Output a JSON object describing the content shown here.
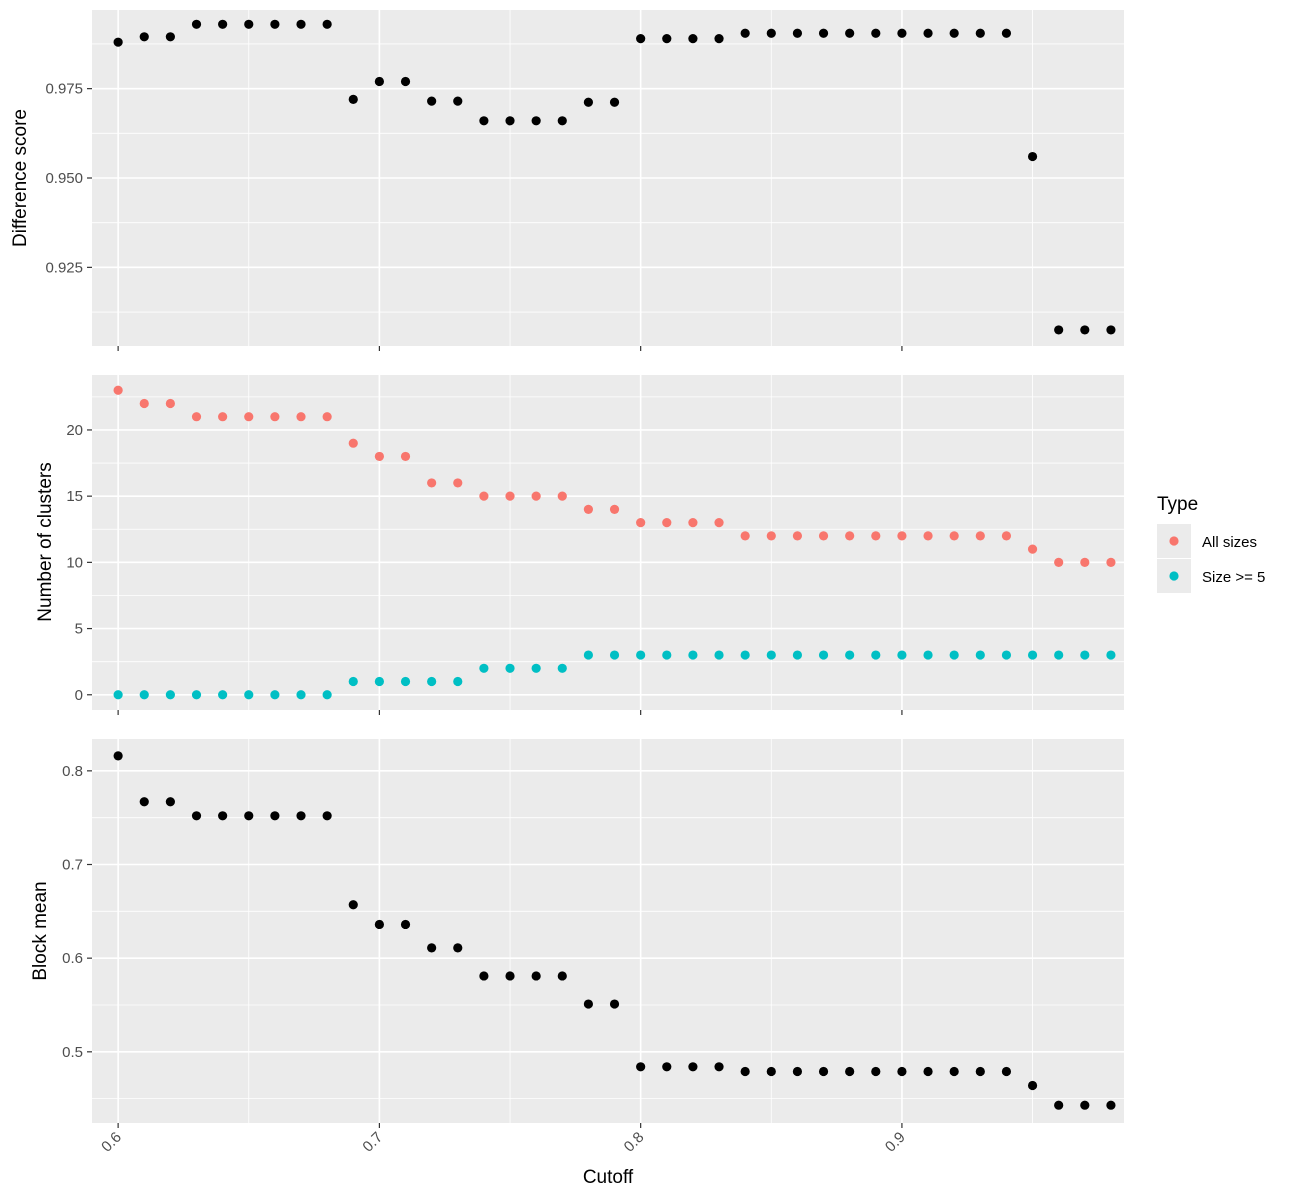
{
  "chart_data": [
    {
      "type": "scatter",
      "panel": "top",
      "ylabel": "Difference score",
      "xlim": [
        0.59,
        0.985
      ],
      "ylim": [
        0.903,
        0.997
      ],
      "x_ticks": [
        0.6,
        0.7,
        0.8,
        0.9
      ],
      "y_ticks": [
        0.925,
        0.95,
        0.975
      ],
      "y_tick_labels": [
        "0.925",
        "0.950",
        "0.975"
      ],
      "grid": true,
      "series": [
        {
          "color": "#000000",
          "points": [
            [
              0.6,
              0.988
            ],
            [
              0.61,
              0.9895
            ],
            [
              0.62,
              0.9895
            ],
            [
              0.63,
              0.993
            ],
            [
              0.64,
              0.993
            ],
            [
              0.65,
              0.993
            ],
            [
              0.66,
              0.993
            ],
            [
              0.67,
              0.993
            ],
            [
              0.68,
              0.993
            ],
            [
              0.69,
              0.972
            ],
            [
              0.7,
              0.977
            ],
            [
              0.71,
              0.977
            ],
            [
              0.72,
              0.9715
            ],
            [
              0.73,
              0.9715
            ],
            [
              0.74,
              0.966
            ],
            [
              0.75,
              0.966
            ],
            [
              0.76,
              0.966
            ],
            [
              0.77,
              0.966
            ],
            [
              0.78,
              0.9712
            ],
            [
              0.79,
              0.9712
            ],
            [
              0.8,
              0.989
            ],
            [
              0.81,
              0.989
            ],
            [
              0.82,
              0.989
            ],
            [
              0.83,
              0.989
            ],
            [
              0.84,
              0.9905
            ],
            [
              0.85,
              0.9905
            ],
            [
              0.86,
              0.9905
            ],
            [
              0.87,
              0.9905
            ],
            [
              0.88,
              0.9905
            ],
            [
              0.89,
              0.9905
            ],
            [
              0.9,
              0.9905
            ],
            [
              0.91,
              0.9905
            ],
            [
              0.92,
              0.9905
            ],
            [
              0.93,
              0.9905
            ],
            [
              0.94,
              0.9905
            ],
            [
              0.95,
              0.956
            ],
            [
              0.96,
              0.9075
            ],
            [
              0.97,
              0.9075
            ],
            [
              0.98,
              0.9075
            ]
          ]
        }
      ]
    },
    {
      "type": "scatter",
      "panel": "middle",
      "ylabel": "Number of clusters",
      "xlim": [
        0.59,
        0.985
      ],
      "ylim": [
        -1.15,
        24.15
      ],
      "x_ticks": [
        0.6,
        0.7,
        0.8,
        0.9
      ],
      "y_ticks": [
        0,
        5,
        10,
        15,
        20
      ],
      "y_tick_labels": [
        "0",
        "5",
        "10",
        "15",
        "20"
      ],
      "grid": true,
      "legend": {
        "title": "Type",
        "position": "right",
        "entries": [
          "All sizes",
          "Size >= 5"
        ]
      },
      "series": [
        {
          "name": "All sizes",
          "color": "#F8766D",
          "points": [
            [
              0.6,
              23
            ],
            [
              0.61,
              22
            ],
            [
              0.62,
              22
            ],
            [
              0.63,
              21
            ],
            [
              0.64,
              21
            ],
            [
              0.65,
              21
            ],
            [
              0.66,
              21
            ],
            [
              0.67,
              21
            ],
            [
              0.68,
              21
            ],
            [
              0.69,
              19
            ],
            [
              0.7,
              18
            ],
            [
              0.71,
              18
            ],
            [
              0.72,
              16
            ],
            [
              0.73,
              16
            ],
            [
              0.74,
              15
            ],
            [
              0.75,
              15
            ],
            [
              0.76,
              15
            ],
            [
              0.77,
              15
            ],
            [
              0.78,
              14
            ],
            [
              0.79,
              14
            ],
            [
              0.8,
              13
            ],
            [
              0.81,
              13
            ],
            [
              0.82,
              13
            ],
            [
              0.83,
              13
            ],
            [
              0.84,
              12
            ],
            [
              0.85,
              12
            ],
            [
              0.86,
              12
            ],
            [
              0.87,
              12
            ],
            [
              0.88,
              12
            ],
            [
              0.89,
              12
            ],
            [
              0.9,
              12
            ],
            [
              0.91,
              12
            ],
            [
              0.92,
              12
            ],
            [
              0.93,
              12
            ],
            [
              0.94,
              12
            ],
            [
              0.95,
              11
            ],
            [
              0.96,
              10
            ],
            [
              0.97,
              10
            ],
            [
              0.98,
              10
            ]
          ]
        },
        {
          "name": "Size >= 5",
          "color": "#00BFC4",
          "points": [
            [
              0.6,
              0
            ],
            [
              0.61,
              0
            ],
            [
              0.62,
              0
            ],
            [
              0.63,
              0
            ],
            [
              0.64,
              0
            ],
            [
              0.65,
              0
            ],
            [
              0.66,
              0
            ],
            [
              0.67,
              0
            ],
            [
              0.68,
              0
            ],
            [
              0.69,
              1
            ],
            [
              0.7,
              1
            ],
            [
              0.71,
              1
            ],
            [
              0.72,
              1
            ],
            [
              0.73,
              1
            ],
            [
              0.74,
              2
            ],
            [
              0.75,
              2
            ],
            [
              0.76,
              2
            ],
            [
              0.77,
              2
            ],
            [
              0.78,
              3
            ],
            [
              0.79,
              3
            ],
            [
              0.8,
              3
            ],
            [
              0.81,
              3
            ],
            [
              0.82,
              3
            ],
            [
              0.83,
              3
            ],
            [
              0.84,
              3
            ],
            [
              0.85,
              3
            ],
            [
              0.86,
              3
            ],
            [
              0.87,
              3
            ],
            [
              0.88,
              3
            ],
            [
              0.89,
              3
            ],
            [
              0.9,
              3
            ],
            [
              0.91,
              3
            ],
            [
              0.92,
              3
            ],
            [
              0.93,
              3
            ],
            [
              0.94,
              3
            ],
            [
              0.95,
              3
            ],
            [
              0.96,
              3
            ],
            [
              0.97,
              3
            ],
            [
              0.98,
              3
            ]
          ]
        }
      ]
    },
    {
      "type": "scatter",
      "panel": "bottom",
      "xlabel": "Cutoff",
      "ylabel": "Block mean",
      "xlim": [
        0.59,
        0.985
      ],
      "ylim": [
        0.424,
        0.834
      ],
      "x_ticks": [
        0.6,
        0.7,
        0.8,
        0.9
      ],
      "x_tick_labels": [
        "0.6",
        "0.7",
        "0.8",
        "0.9"
      ],
      "y_ticks": [
        0.5,
        0.6,
        0.7,
        0.8
      ],
      "y_tick_labels": [
        "0.5",
        "0.6",
        "0.7",
        "0.8"
      ],
      "grid": true,
      "series": [
        {
          "color": "#000000",
          "points": [
            [
              0.6,
              0.816
            ],
            [
              0.61,
              0.767
            ],
            [
              0.62,
              0.767
            ],
            [
              0.63,
              0.752
            ],
            [
              0.64,
              0.752
            ],
            [
              0.65,
              0.752
            ],
            [
              0.66,
              0.752
            ],
            [
              0.67,
              0.752
            ],
            [
              0.68,
              0.752
            ],
            [
              0.69,
              0.657
            ],
            [
              0.7,
              0.636
            ],
            [
              0.71,
              0.636
            ],
            [
              0.72,
              0.611
            ],
            [
              0.73,
              0.611
            ],
            [
              0.74,
              0.581
            ],
            [
              0.75,
              0.581
            ],
            [
              0.76,
              0.581
            ],
            [
              0.77,
              0.581
            ],
            [
              0.78,
              0.551
            ],
            [
              0.79,
              0.551
            ],
            [
              0.8,
              0.484
            ],
            [
              0.81,
              0.484
            ],
            [
              0.82,
              0.484
            ],
            [
              0.83,
              0.484
            ],
            [
              0.84,
              0.479
            ],
            [
              0.85,
              0.479
            ],
            [
              0.86,
              0.479
            ],
            [
              0.87,
              0.479
            ],
            [
              0.88,
              0.479
            ],
            [
              0.89,
              0.479
            ],
            [
              0.9,
              0.479
            ],
            [
              0.91,
              0.479
            ],
            [
              0.92,
              0.479
            ],
            [
              0.93,
              0.479
            ],
            [
              0.94,
              0.479
            ],
            [
              0.95,
              0.464
            ],
            [
              0.96,
              0.443
            ],
            [
              0.97,
              0.443
            ],
            [
              0.98,
              0.443
            ]
          ]
        }
      ]
    }
  ]
}
